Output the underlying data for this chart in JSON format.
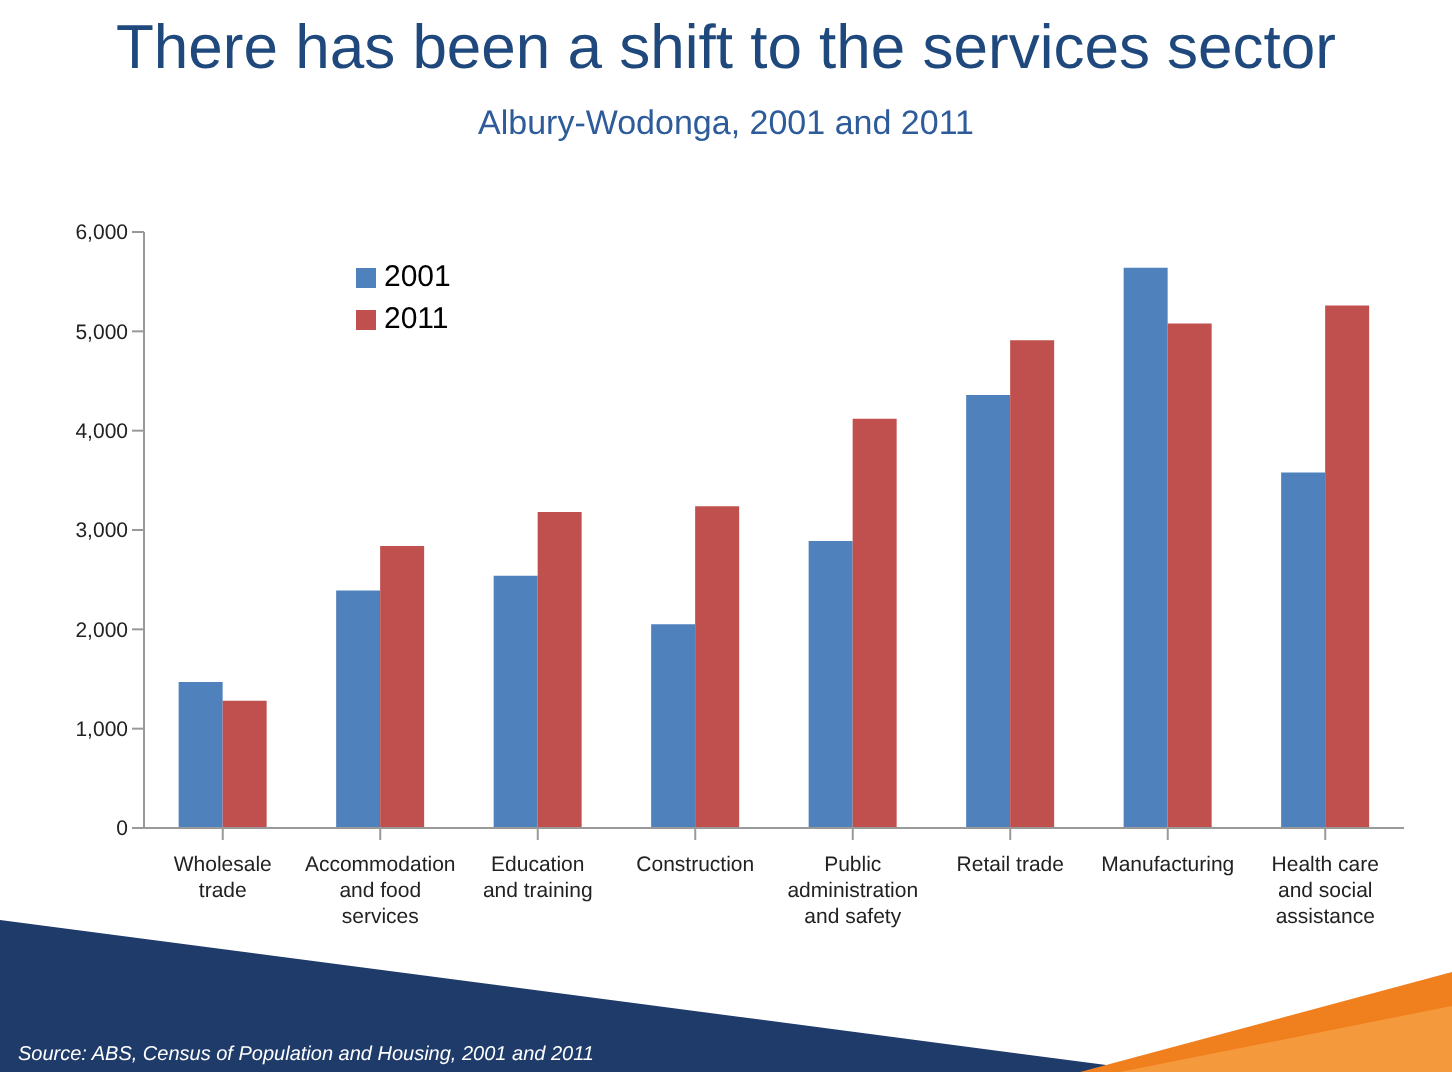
{
  "chart_data": {
    "type": "bar",
    "title": "There has been a shift to the services sector",
    "subtitle": "Albury-Wodonga, 2001 and 2011",
    "categories": [
      "Wholesale trade",
      "Accommodation and food services",
      "Education and training",
      "Construction",
      "Public administration and safety",
      "Retail trade",
      "Manufacturing",
      "Health care and social assistance"
    ],
    "series": [
      {
        "name": "2001",
        "color": "#4f81bd",
        "values": [
          1470,
          2390,
          2540,
          2050,
          2890,
          4360,
          5640,
          3580
        ]
      },
      {
        "name": "2011",
        "color": "#c0504d",
        "values": [
          1280,
          2840,
          3180,
          3240,
          4120,
          4910,
          5080,
          5260
        ]
      }
    ],
    "ylim": [
      0,
      6000
    ],
    "yticks": [
      {
        "value": 0,
        "label": "0"
      },
      {
        "value": 1000,
        "label": "1,000"
      },
      {
        "value": 2000,
        "label": "2,000"
      },
      {
        "value": 3000,
        "label": "3,000"
      },
      {
        "value": 4000,
        "label": "4,000"
      },
      {
        "value": 5000,
        "label": "5,000"
      },
      {
        "value": 6000,
        "label": "6,000"
      }
    ],
    "grid": false,
    "legend": "top left",
    "annotations": [
      "Source: ABS, Census of Population and Housing, 2001 and 2011"
    ]
  }
}
